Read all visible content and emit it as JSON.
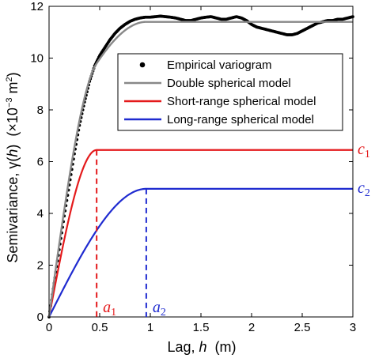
{
  "chart_data": {
    "type": "line",
    "xlabel_prefix": "Lag, ",
    "xlabel_var": "h",
    "xlabel_suffix": "  (m)",
    "ylabel_prefix": "Semivariance, γ(",
    "ylabel_var": "h",
    "ylabel_mid": ")  (×10",
    "ylabel_exp1": "−3",
    "ylabel_mid2": " m",
    "ylabel_exp2": "2",
    "ylabel_end": ")",
    "xlim": [
      0,
      3
    ],
    "ylim": [
      0,
      12
    ],
    "xticks": [
      "0",
      "0.5",
      "1",
      "1.5",
      "2",
      "2.5",
      "3"
    ],
    "xtick_values": [
      0,
      0.5,
      1,
      1.5,
      2,
      2.5,
      3
    ],
    "yticks": [
      "0",
      "2",
      "4",
      "6",
      "8",
      "10",
      "12"
    ],
    "ytick_values": [
      0,
      2,
      4,
      6,
      8,
      10,
      12
    ],
    "grid": false,
    "legend_position": "top-right",
    "legend": [
      {
        "label": "Empirical variogram",
        "kind": "dots",
        "color": "#000000"
      },
      {
        "label": "Double spherical model",
        "kind": "line",
        "color": "#888888"
      },
      {
        "label": "Short-range spherical model",
        "kind": "line",
        "color": "#e41a1c"
      },
      {
        "label": "Long-range spherical model",
        "kind": "line",
        "color": "#1f2bd0"
      }
    ],
    "series": [
      {
        "name": "Empirical variogram",
        "color": "#000000",
        "x": [
          0,
          0.05,
          0.1,
          0.15,
          0.2,
          0.25,
          0.3,
          0.35,
          0.4,
          0.45,
          0.5,
          0.55,
          0.6,
          0.65,
          0.7,
          0.75,
          0.8,
          0.85,
          0.9,
          0.95,
          1.0,
          1.05,
          1.1,
          1.15,
          1.2,
          1.25,
          1.3,
          1.35,
          1.4,
          1.45,
          1.5,
          1.55,
          1.6,
          1.65,
          1.7,
          1.75,
          1.8,
          1.85,
          1.9,
          1.95,
          2.0,
          2.05,
          2.1,
          2.15,
          2.2,
          2.25,
          2.3,
          2.35,
          2.4,
          2.45,
          2.5,
          2.55,
          2.6,
          2.65,
          2.7,
          2.75,
          2.8,
          2.85,
          2.9,
          2.95,
          3.0
        ],
        "y": [
          0,
          1.3,
          2.6,
          3.9,
          5.1,
          6.3,
          7.4,
          8.3,
          9.1,
          9.7,
          10.1,
          10.4,
          10.7,
          10.95,
          11.15,
          11.3,
          11.42,
          11.5,
          11.55,
          11.58,
          11.58,
          11.6,
          11.62,
          11.6,
          11.58,
          11.55,
          11.5,
          11.45,
          11.45,
          11.5,
          11.55,
          11.58,
          11.6,
          11.55,
          11.5,
          11.5,
          11.55,
          11.6,
          11.55,
          11.45,
          11.3,
          11.2,
          11.15,
          11.1,
          11.05,
          11.0,
          10.95,
          10.9,
          10.9,
          10.95,
          11.05,
          11.15,
          11.25,
          11.35,
          11.4,
          11.45,
          11.45,
          11.5,
          11.5,
          11.55,
          11.6
        ]
      },
      {
        "name": "Double spherical model",
        "color": "#888888",
        "model": "double-spherical",
        "sill": 11.4
      },
      {
        "name": "Short-range spherical model",
        "color": "#e41a1c",
        "model": "spherical",
        "sill": 6.45,
        "range": 0.47
      },
      {
        "name": "Long-range spherical model",
        "color": "#1f2bd0",
        "model": "spherical",
        "sill": 4.95,
        "range": 0.96
      }
    ],
    "annotations": [
      {
        "id": "a1",
        "letter": "a",
        "sub": "1",
        "color": "#e41a1c",
        "x": 0.47,
        "y": 0
      },
      {
        "id": "a2",
        "letter": "a",
        "sub": "2",
        "color": "#1f2bd0",
        "x": 0.96,
        "y": 0
      },
      {
        "id": "c1",
        "letter": "c",
        "sub": "1",
        "color": "#e41a1c",
        "x": 3,
        "y": 6.45
      },
      {
        "id": "c2",
        "letter": "c",
        "sub": "2",
        "color": "#1f2bd0",
        "x": 3,
        "y": 4.95
      }
    ]
  }
}
